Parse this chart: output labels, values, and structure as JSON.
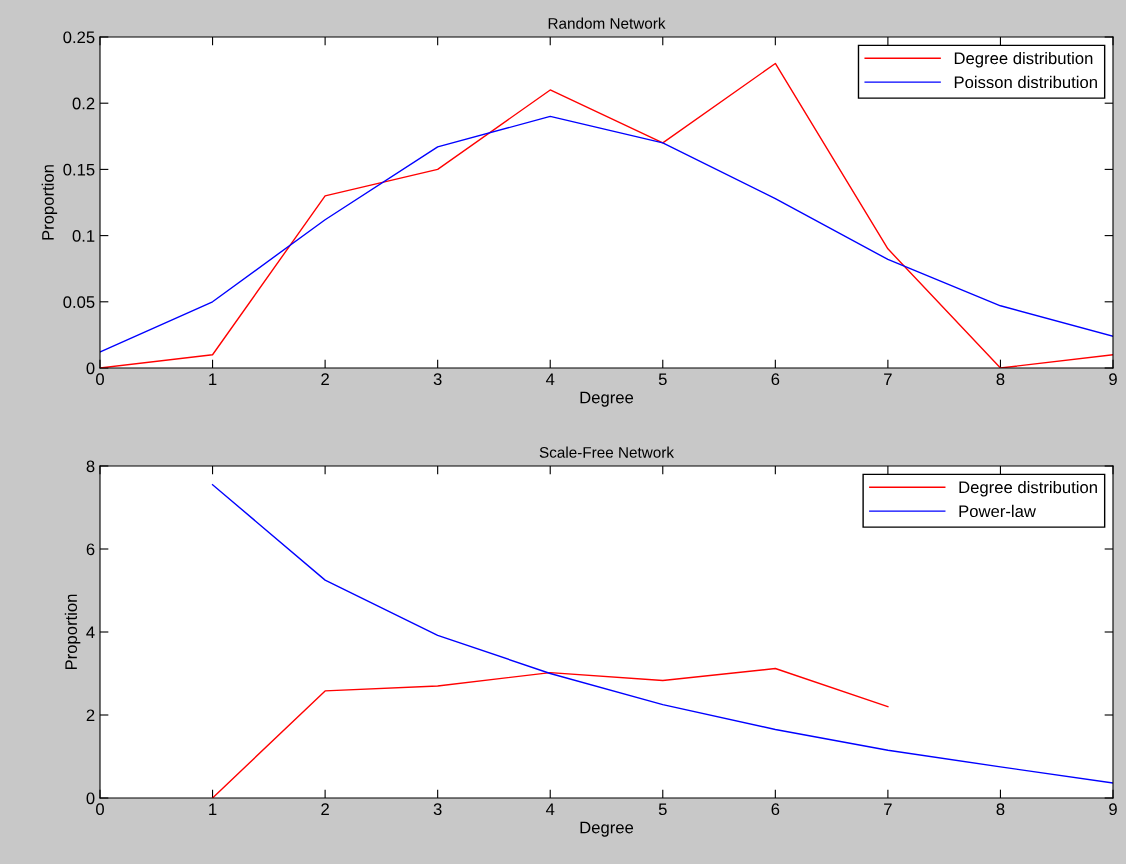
{
  "chart_data": [
    {
      "type": "line",
      "title": "Random Network",
      "xlabel": "Degree",
      "ylabel": "Proportion",
      "xlim": [
        0,
        9
      ],
      "xticks": [
        0,
        1,
        2,
        3,
        4,
        5,
        6,
        7,
        8,
        9
      ],
      "ylim": [
        0,
        0.25
      ],
      "yticks": [
        0,
        0.05,
        0.1,
        0.15,
        0.2,
        0.25
      ],
      "legend": "top right",
      "grid": false,
      "series": [
        {
          "name": "Degree distribution",
          "color": "#ff0000",
          "x": [
            0,
            1,
            2,
            3,
            4,
            5,
            6,
            7,
            8,
            9
          ],
          "values": [
            0,
            0.01,
            0.13,
            0.15,
            0.21,
            0.17,
            0.23,
            0.09,
            0,
            0.01
          ]
        },
        {
          "name": "Poisson distribution",
          "color": "#0000ff",
          "x": [
            0,
            1,
            2,
            3,
            4,
            5,
            6,
            7,
            8,
            9
          ],
          "values": [
            0.012,
            0.05,
            0.112,
            0.167,
            0.19,
            0.17,
            0.128,
            0.082,
            0.047,
            0.024
          ]
        }
      ]
    },
    {
      "type": "line",
      "title": "Scale-Free Network",
      "xlabel": "Degree",
      "ylabel": "Proportion",
      "xlim": [
        0,
        9
      ],
      "xticks": [
        0,
        1,
        2,
        3,
        4,
        5,
        6,
        7,
        8,
        9
      ],
      "ylim": [
        0,
        8
      ],
      "yticks": [
        0,
        2,
        4,
        6,
        8
      ],
      "legend": "top right",
      "grid": false,
      "series": [
        {
          "name": "Degree distribution",
          "color": "#ff0000",
          "x": [
            1,
            2,
            3,
            4,
            5,
            6,
            7
          ],
          "values": [
            0,
            2.58,
            2.7,
            3.02,
            2.83,
            3.12,
            2.2
          ]
        },
        {
          "name": "Power-law",
          "color": "#0000ff",
          "x": [
            1,
            2,
            3,
            4,
            5,
            6,
            7,
            8,
            9
          ],
          "values": [
            7.55,
            5.25,
            3.92,
            3.0,
            2.25,
            1.65,
            1.15,
            0.75,
            0.36
          ]
        }
      ]
    }
  ]
}
